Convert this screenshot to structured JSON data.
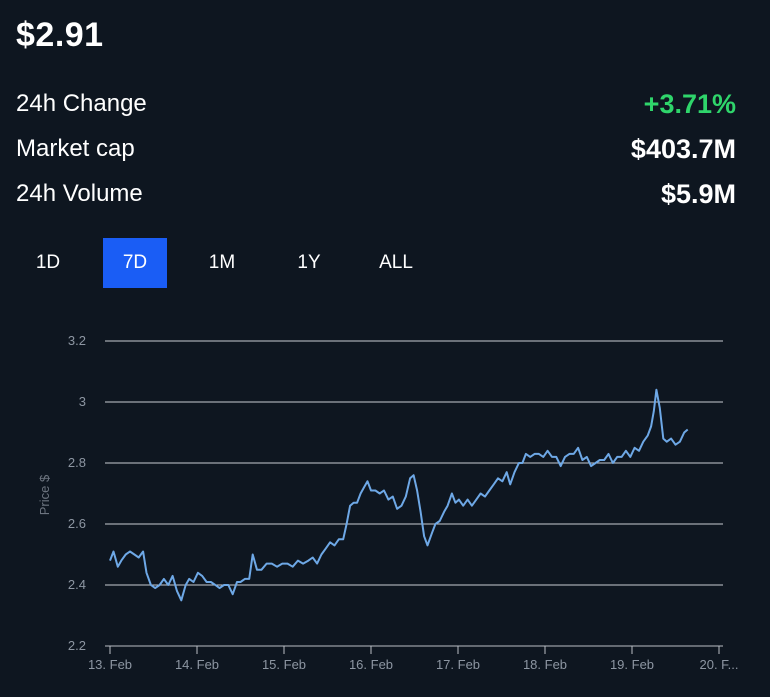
{
  "header": {
    "price": "$2.91"
  },
  "stats": [
    {
      "label": "24h Change",
      "value": "+3.71%",
      "tone": "positive"
    },
    {
      "label": "Market cap",
      "value": "$403.7M",
      "tone": "neutral"
    },
    {
      "label": "24h Volume",
      "value": "$5.9M",
      "tone": "neutral"
    }
  ],
  "range_tabs": [
    {
      "label": "1D",
      "active": false
    },
    {
      "label": "7D",
      "active": true
    },
    {
      "label": "1M",
      "active": false
    },
    {
      "label": "1Y",
      "active": false
    },
    {
      "label": "ALL",
      "active": false
    }
  ],
  "colors": {
    "accent": "#1a5df5",
    "positive": "#2fd56b",
    "line": "#6ea8e6",
    "grid": "#c8ccd2"
  },
  "chart_data": {
    "type": "line",
    "title": "",
    "xlabel": "",
    "ylabel": "Price $",
    "ylim": [
      2.2,
      3.2
    ],
    "yticks": [
      "2.2",
      "2.4",
      "2.6",
      "2.8",
      "3",
      "3.2"
    ],
    "grid": true,
    "xlim_days": [
      "13. Feb",
      "20. Feb"
    ],
    "xtick_labels": [
      "13. Feb",
      "14. Feb",
      "15. Feb",
      "16. Feb",
      "17. Feb",
      "18. Feb",
      "19. Feb",
      "20. F..."
    ],
    "series": [
      {
        "values": [
          [
            13.0,
            2.48
          ],
          [
            13.04,
            2.51
          ],
          [
            13.09,
            2.46
          ],
          [
            13.13,
            2.48
          ],
          [
            13.18,
            2.5
          ],
          [
            13.23,
            2.51
          ],
          [
            13.28,
            2.5
          ],
          [
            13.33,
            2.49
          ],
          [
            13.38,
            2.51
          ],
          [
            13.42,
            2.44
          ],
          [
            13.47,
            2.4
          ],
          [
            13.52,
            2.39
          ],
          [
            13.57,
            2.4
          ],
          [
            13.62,
            2.42
          ],
          [
            13.67,
            2.4
          ],
          [
            13.72,
            2.43
          ],
          [
            13.77,
            2.38
          ],
          [
            13.82,
            2.35
          ],
          [
            13.87,
            2.4
          ],
          [
            13.91,
            2.42
          ],
          [
            13.96,
            2.41
          ],
          [
            14.01,
            2.44
          ],
          [
            14.06,
            2.43
          ],
          [
            14.11,
            2.41
          ],
          [
            14.16,
            2.41
          ],
          [
            14.21,
            2.4
          ],
          [
            14.26,
            2.39
          ],
          [
            14.31,
            2.4
          ],
          [
            14.36,
            2.4
          ],
          [
            14.41,
            2.37
          ],
          [
            14.46,
            2.41
          ],
          [
            14.5,
            2.41
          ],
          [
            14.55,
            2.42
          ],
          [
            14.6,
            2.42
          ],
          [
            14.64,
            2.5
          ],
          [
            14.69,
            2.45
          ],
          [
            14.74,
            2.45
          ],
          [
            14.8,
            2.47
          ],
          [
            14.86,
            2.47
          ],
          [
            14.92,
            2.46
          ],
          [
            14.98,
            2.47
          ],
          [
            15.04,
            2.47
          ],
          [
            15.1,
            2.46
          ],
          [
            15.16,
            2.48
          ],
          [
            15.22,
            2.47
          ],
          [
            15.28,
            2.48
          ],
          [
            15.33,
            2.49
          ],
          [
            15.38,
            2.47
          ],
          [
            15.43,
            2.5
          ],
          [
            15.48,
            2.52
          ],
          [
            15.53,
            2.54
          ],
          [
            15.58,
            2.53
          ],
          [
            15.63,
            2.55
          ],
          [
            15.68,
            2.55
          ],
          [
            15.72,
            2.6
          ],
          [
            15.76,
            2.66
          ],
          [
            15.8,
            2.67
          ],
          [
            15.84,
            2.67
          ],
          [
            15.88,
            2.7
          ],
          [
            15.92,
            2.72
          ],
          [
            15.96,
            2.74
          ],
          [
            16.0,
            2.71
          ],
          [
            16.05,
            2.71
          ],
          [
            16.1,
            2.7
          ],
          [
            16.15,
            2.71
          ],
          [
            16.2,
            2.68
          ],
          [
            16.25,
            2.69
          ],
          [
            16.3,
            2.65
          ],
          [
            16.35,
            2.66
          ],
          [
            16.4,
            2.69
          ],
          [
            16.45,
            2.75
          ],
          [
            16.49,
            2.76
          ],
          [
            16.53,
            2.71
          ],
          [
            16.57,
            2.64
          ],
          [
            16.61,
            2.56
          ],
          [
            16.65,
            2.53
          ],
          [
            16.7,
            2.57
          ],
          [
            16.74,
            2.6
          ],
          [
            16.79,
            2.61
          ],
          [
            16.84,
            2.64
          ],
          [
            16.88,
            2.66
          ],
          [
            16.93,
            2.7
          ],
          [
            16.97,
            2.67
          ],
          [
            17.01,
            2.68
          ],
          [
            17.06,
            2.66
          ],
          [
            17.11,
            2.68
          ],
          [
            17.16,
            2.66
          ],
          [
            17.21,
            2.68
          ],
          [
            17.26,
            2.7
          ],
          [
            17.31,
            2.69
          ],
          [
            17.36,
            2.71
          ],
          [
            17.41,
            2.73
          ],
          [
            17.46,
            2.75
          ],
          [
            17.51,
            2.74
          ],
          [
            17.56,
            2.77
          ],
          [
            17.6,
            2.73
          ],
          [
            17.65,
            2.77
          ],
          [
            17.7,
            2.8
          ],
          [
            17.74,
            2.8
          ],
          [
            17.78,
            2.83
          ],
          [
            17.83,
            2.82
          ],
          [
            17.88,
            2.83
          ],
          [
            17.93,
            2.83
          ],
          [
            17.98,
            2.82
          ],
          [
            18.03,
            2.84
          ],
          [
            18.08,
            2.82
          ],
          [
            18.13,
            2.82
          ],
          [
            18.18,
            2.79
          ],
          [
            18.23,
            2.82
          ],
          [
            18.28,
            2.83
          ],
          [
            18.33,
            2.83
          ],
          [
            18.38,
            2.85
          ],
          [
            18.43,
            2.81
          ],
          [
            18.48,
            2.82
          ],
          [
            18.53,
            2.79
          ],
          [
            18.58,
            2.8
          ],
          [
            18.63,
            2.81
          ],
          [
            18.68,
            2.81
          ],
          [
            18.73,
            2.83
          ],
          [
            18.78,
            2.8
          ],
          [
            18.83,
            2.82
          ],
          [
            18.88,
            2.82
          ],
          [
            18.93,
            2.84
          ],
          [
            18.98,
            2.82
          ],
          [
            19.03,
            2.85
          ],
          [
            19.08,
            2.84
          ],
          [
            19.13,
            2.87
          ],
          [
            19.18,
            2.89
          ],
          [
            19.22,
            2.92
          ],
          [
            19.25,
            2.97
          ],
          [
            19.28,
            3.04
          ],
          [
            19.32,
            2.98
          ],
          [
            19.36,
            2.88
          ],
          [
            19.4,
            2.87
          ],
          [
            19.45,
            2.88
          ],
          [
            19.5,
            2.86
          ],
          [
            19.55,
            2.87
          ],
          [
            19.6,
            2.9
          ],
          [
            19.64,
            2.91
          ]
        ]
      }
    ]
  }
}
